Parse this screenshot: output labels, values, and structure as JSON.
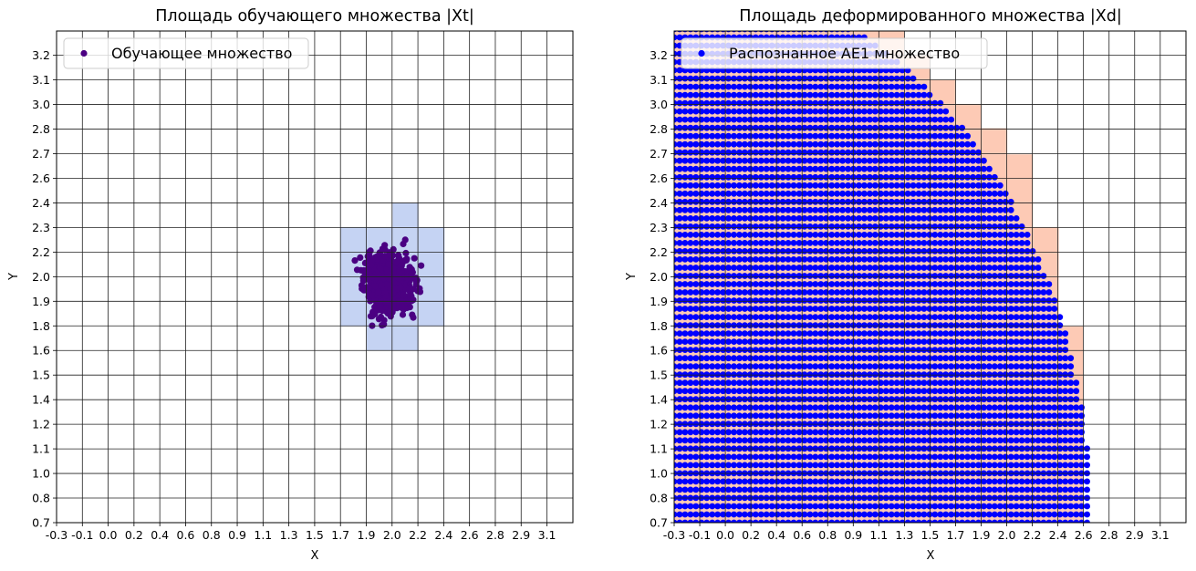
{
  "chart_data": [
    {
      "type": "scatter",
      "title": "Площадь обучающего множества |Xt|",
      "xlabel": "X",
      "ylabel": "Y",
      "xlim": [
        -0.3,
        3.28
      ],
      "ylim": [
        0.7,
        3.33
      ],
      "xtick_labels": [
        "-0.3",
        "-0.1",
        "0.0",
        "0.2",
        "0.4",
        "0.6",
        "0.8",
        "0.9",
        "1.1",
        "1.3",
        "1.5",
        "1.7",
        "1.9",
        "2.0",
        "2.2",
        "2.4",
        "2.6",
        "2.8",
        "2.9",
        "3.1"
      ],
      "ytick_labels": [
        "0.7",
        "0.8",
        "1.0",
        "1.1",
        "1.2",
        "1.4",
        "1.5",
        "1.6",
        "1.8",
        "1.9",
        "2.0",
        "2.2",
        "2.3",
        "2.4",
        "2.6",
        "2.7",
        "2.8",
        "3.0",
        "3.1",
        "3.2"
      ],
      "grid": true,
      "legend": {
        "position": "top-left",
        "entries": [
          {
            "label": "Обучающее множество",
            "color": "#4b0082"
          }
        ]
      },
      "regions": {
        "color": "#c5d3f3",
        "cells": [
          {
            "x": [
              1.67,
              2.39
            ],
            "y": [
              1.75,
              2.28
            ]
          },
          {
            "x": [
              1.85,
              2.21
            ],
            "y": [
              1.62,
              1.75
            ]
          },
          {
            "x": [
              2.03,
              2.21
            ],
            "y": [
              2.28,
              2.41
            ]
          }
        ]
      },
      "series": [
        {
          "name": "Обучающее множество",
          "color": "#4b0082",
          "distribution": "normal cluster",
          "count": 1000,
          "center": [
            2.0,
            1.98
          ],
          "std": [
            0.075,
            0.07
          ]
        }
      ]
    },
    {
      "type": "scatter",
      "title": "Площадь деформированного множества |Xd|",
      "xlabel": "X",
      "ylabel": "Y",
      "xlim": [
        -0.3,
        3.28
      ],
      "ylim": [
        0.7,
        3.33
      ],
      "xtick_labels": [
        "-0.3",
        "-0.1",
        "0.0",
        "0.2",
        "0.4",
        "0.6",
        "0.8",
        "0.9",
        "1.1",
        "1.3",
        "1.5",
        "1.7",
        "1.9",
        "2.0",
        "2.2",
        "2.4",
        "2.6",
        "2.8",
        "2.9",
        "3.1"
      ],
      "ytick_labels": [
        "0.7",
        "0.8",
        "1.0",
        "1.1",
        "1.2",
        "1.4",
        "1.5",
        "1.6",
        "1.8",
        "1.9",
        "2.0",
        "2.2",
        "2.3",
        "2.4",
        "2.6",
        "2.7",
        "2.8",
        "3.0",
        "3.1",
        "3.2"
      ],
      "grid": true,
      "legend": {
        "position": "top-left",
        "entries": [
          {
            "label": "Распознанное AE1 множество",
            "color": "#0000ff"
          }
        ]
      },
      "regions": {
        "color": "#fdcab5",
        "cells": [
          {
            "x": [
              -0.3,
              2.56
            ],
            "y": [
              0.7,
              1.75
            ]
          },
          {
            "x": [
              -0.3,
              2.39
            ],
            "y": [
              1.75,
              2.28
            ]
          },
          {
            "x": [
              -0.3,
              2.21
            ],
            "y": [
              2.28,
              2.67
            ]
          },
          {
            "x": [
              -0.3,
              2.03
            ],
            "y": [
              2.67,
              2.81
            ]
          },
          {
            "x": [
              -0.3,
              1.85
            ],
            "y": [
              2.81,
              2.94
            ]
          },
          {
            "x": [
              -0.3,
              1.67
            ],
            "y": [
              2.94,
              3.07
            ]
          },
          {
            "x": [
              -0.3,
              1.49
            ],
            "y": [
              3.07,
              3.2
            ]
          },
          {
            "x": [
              -0.3,
              1.31
            ],
            "y": [
              3.2,
              3.33
            ]
          }
        ]
      },
      "series": [
        {
          "name": "Распознанное AE1 множество",
          "color": "#0000ff",
          "distribution": "regular grid inside circle",
          "x_start": -0.3,
          "y_start": 0.7,
          "dx": 0.038,
          "dy": 0.044,
          "circle_center": [
            -0.3,
            0.7
          ],
          "radius": 2.92
        }
      ]
    }
  ]
}
